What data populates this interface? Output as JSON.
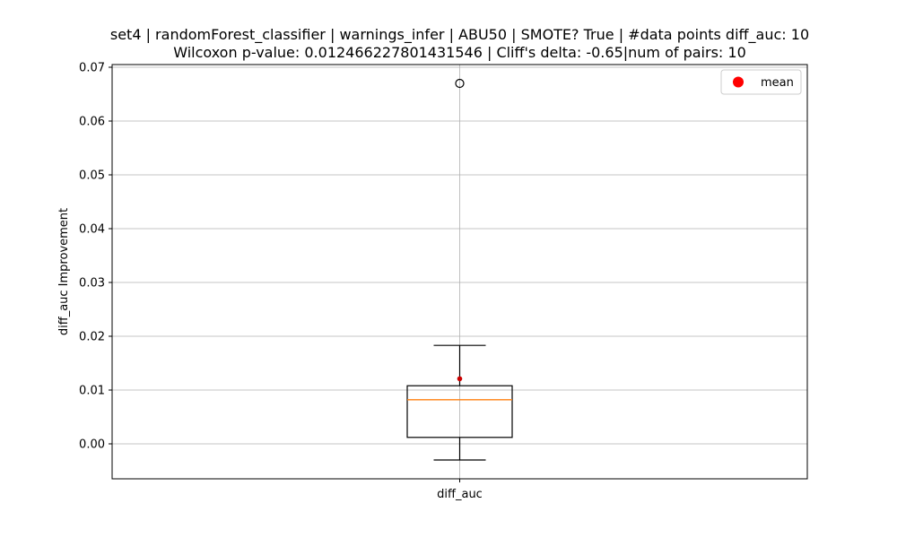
{
  "chart_data": {
    "type": "box",
    "title_line1": "set4 | randomForest_classifier | warnings_infer | ABU50 | SMOTE? True | #data points diff_auc: 10",
    "title_line2": "Wilcoxon p-value: 0.012466227801431546 | Cliff's delta: -0.65|num of pairs: 10",
    "xlabel": "",
    "ylabel": "diff_auc Improvement",
    "categories": [
      "diff_auc"
    ],
    "ylim": [
      -0.0065,
      0.0705
    ],
    "yticks": [
      0.0,
      0.01,
      0.02,
      0.03,
      0.04,
      0.05,
      0.06,
      0.07
    ],
    "ytick_labels": [
      "0.00",
      "0.01",
      "0.02",
      "0.03",
      "0.04",
      "0.05",
      "0.06",
      "0.07"
    ],
    "grid": true,
    "legend": {
      "position": "top-right",
      "entries": [
        {
          "label": "mean",
          "marker": "circle",
          "color": "#ff0000"
        }
      ]
    },
    "boxes": [
      {
        "category": "diff_auc",
        "whisker_low": -0.003,
        "q1": 0.0012,
        "median": 0.0082,
        "q3": 0.0108,
        "whisker_high": 0.0183,
        "mean": 0.0121,
        "outliers": [
          0.067
        ]
      }
    ],
    "colors": {
      "box": "#000000",
      "median": "#ff7f0e",
      "mean": "#cc0000",
      "grid": "#b0b0b0"
    }
  }
}
